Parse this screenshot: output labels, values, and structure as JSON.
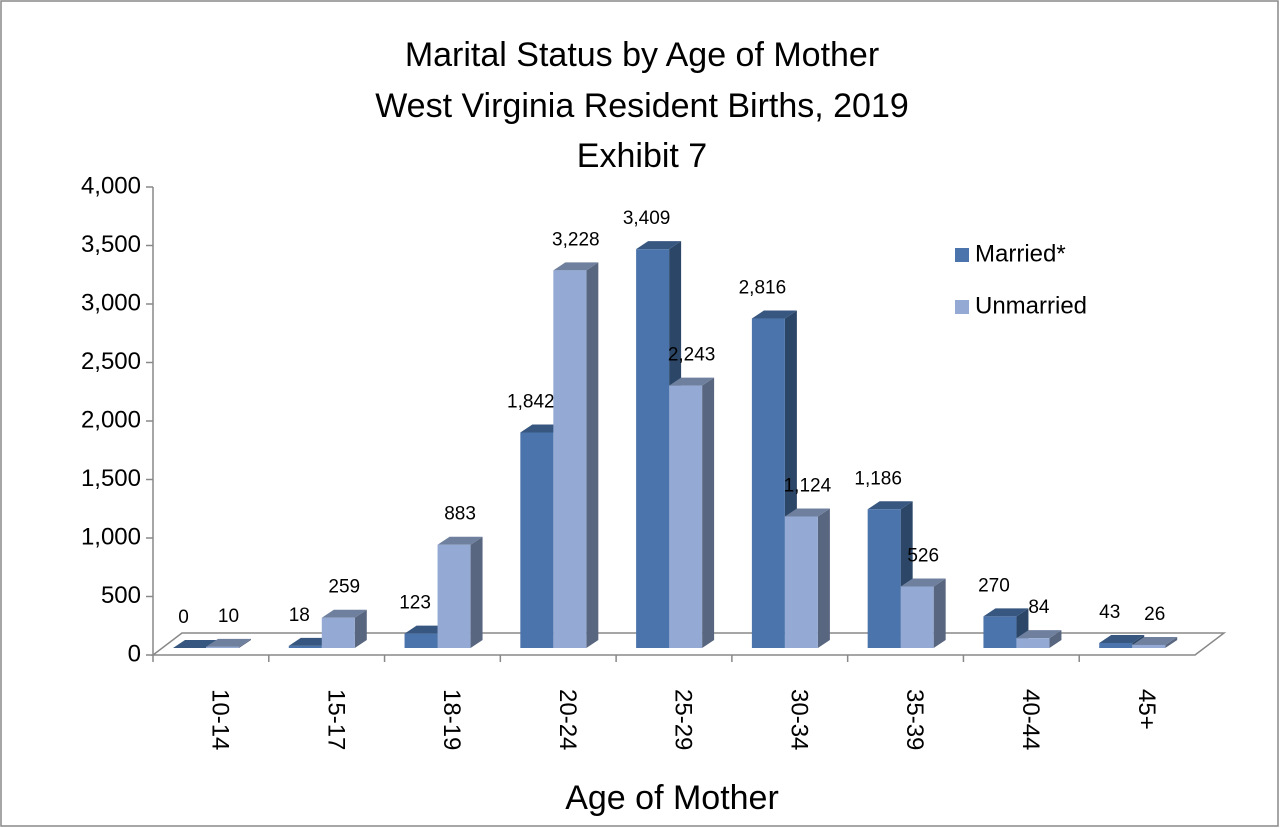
{
  "chart_data": {
    "type": "bar3d",
    "title": [
      "Marital Status by Age of Mother",
      "West Virginia Resident Births, 2019",
      "Exhibit 7"
    ],
    "x_label": "Age of Mother",
    "categories": [
      "10-14",
      "15-17",
      "18-19",
      "20-24",
      "25-29",
      "30-34",
      "35-39",
      "40-44",
      "45+"
    ],
    "series": [
      {
        "name": "Married*",
        "color": "#4a74ab",
        "values": [
          0,
          18,
          123,
          1842,
          3409,
          2816,
          1186,
          270,
          43
        ],
        "value_labels": [
          "0",
          "18",
          "123",
          "1,842",
          "3,409",
          "2,816",
          "1,186",
          "270",
          "43"
        ]
      },
      {
        "name": "Unmarried",
        "color": "#94aad4",
        "values": [
          10,
          259,
          883,
          3228,
          2243,
          1124,
          526,
          84,
          26
        ],
        "value_labels": [
          "10",
          "259",
          "883",
          "3,228",
          "2,243",
          "1,124",
          "526",
          "84",
          "26"
        ]
      }
    ],
    "ylim": [
      0,
      4000
    ],
    "yticks": [
      0,
      500,
      {
        "value": 1000,
        "label": "1,000"
      },
      {
        "value": 1500,
        "label": "1,500"
      },
      {
        "value": 2000,
        "label": "2,000"
      },
      {
        "value": 2500,
        "label": "2,500"
      },
      {
        "value": 3000,
        "label": "3,000"
      },
      {
        "value": 3500,
        "label": "3,500"
      },
      {
        "value": 4000,
        "label": "4,000"
      }
    ],
    "legend": "right"
  }
}
